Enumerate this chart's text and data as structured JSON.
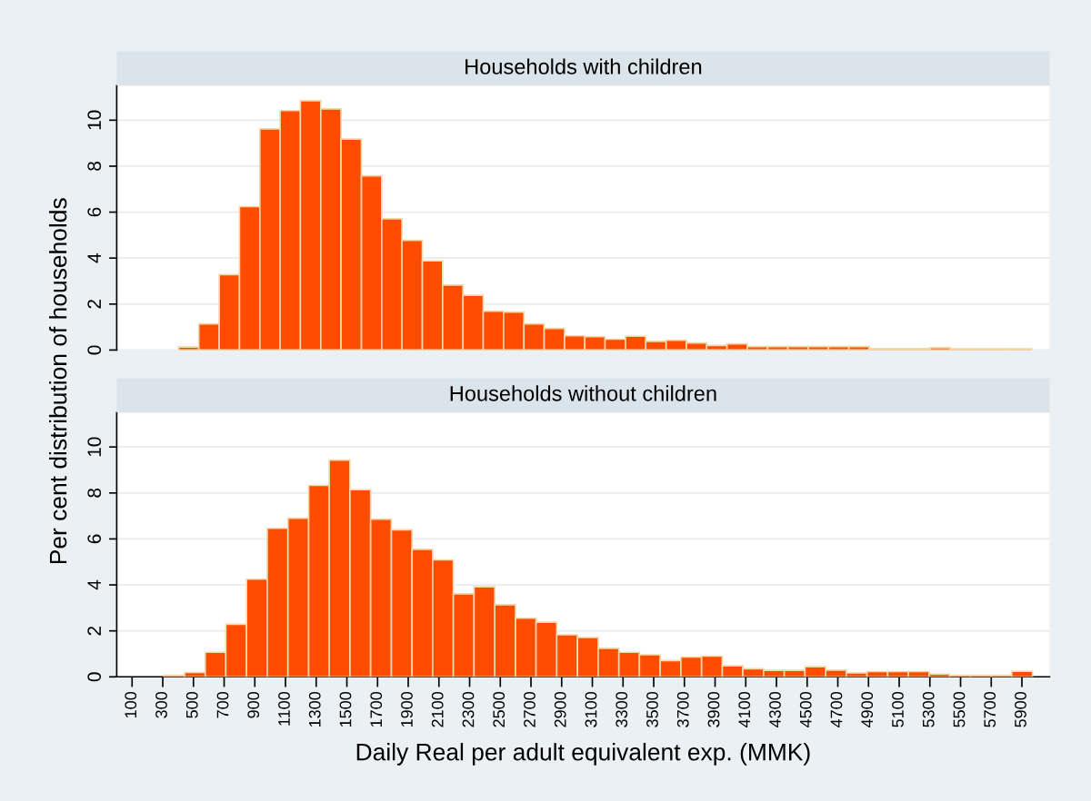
{
  "chart_data": [
    {
      "type": "histogram",
      "title": "Households with children",
      "ylabel": "Per cent distribution of households",
      "color": "#ff4c00",
      "bins": [
        403,
        535,
        668,
        800,
        933,
        1065,
        1197,
        1330,
        1462,
        1595,
        1727,
        1859,
        1992,
        2124,
        2257,
        2389,
        2521,
        2654,
        2786,
        2919,
        3051,
        3183,
        3316,
        3448,
        3581,
        3713,
        3845,
        3978,
        4110,
        4243,
        4375,
        4507,
        4640,
        4772,
        4905,
        5037,
        5169,
        5302,
        5434,
        5567,
        5699,
        5831,
        5964
      ],
      "values": [
        0.13,
        1.14,
        3.28,
        6.24,
        9.62,
        10.42,
        10.85,
        10.49,
        9.18,
        7.58,
        5.71,
        4.77,
        3.88,
        2.83,
        2.38,
        1.69,
        1.65,
        1.14,
        0.94,
        0.62,
        0.58,
        0.47,
        0.6,
        0.38,
        0.43,
        0.31,
        0.2,
        0.27,
        0.15,
        0.15,
        0.15,
        0.15,
        0.15,
        0.15,
        0.06,
        0.06,
        0.06,
        0.1,
        0.05,
        0.05,
        0.05,
        0.05
      ],
      "xlim": [
        0,
        6080
      ],
      "ylim": [
        0,
        11.5
      ],
      "yticks": [
        0,
        2,
        4,
        6,
        8,
        10
      ],
      "xticks": [
        100,
        300,
        500,
        700,
        900,
        1100,
        1300,
        1500,
        1700,
        1900,
        2100,
        2300,
        2500,
        2700,
        2900,
        3100,
        3300,
        3500,
        3700,
        3900,
        4100,
        4300,
        4500,
        4700,
        4900,
        5100,
        5300,
        5500,
        5700,
        5900
      ],
      "tick_labels": "y",
      "grid": "y"
    },
    {
      "type": "histogram",
      "title": "Households without children",
      "xlabel": "Daily Real per adult equivalent exp. (MMK)",
      "color": "#ff4c00",
      "bins": [
        307,
        442,
        577,
        711,
        846,
        981,
        1116,
        1251,
        1385,
        1520,
        1655,
        1790,
        1925,
        2059,
        2194,
        2329,
        2464,
        2599,
        2733,
        2868,
        3003,
        3138,
        3273,
        3407,
        3542,
        3677,
        3812,
        3947,
        4081,
        4216,
        4351,
        4486,
        4621,
        4755,
        4890,
        5025,
        5160,
        5295,
        5429,
        5564,
        5699,
        5834,
        5969
      ],
      "values": [
        0.07,
        0.19,
        1.07,
        2.29,
        4.25,
        6.46,
        6.9,
        8.33,
        9.43,
        8.14,
        6.86,
        6.4,
        5.55,
        5.09,
        3.61,
        3.92,
        3.14,
        2.55,
        2.38,
        1.83,
        1.71,
        1.24,
        1.07,
        0.96,
        0.71,
        0.86,
        0.9,
        0.48,
        0.35,
        0.28,
        0.28,
        0.44,
        0.29,
        0.17,
        0.23,
        0.23,
        0.23,
        0.12,
        0.07,
        0.07,
        0.07,
        0.24
      ],
      "xlim": [
        0,
        6080
      ],
      "ylim": [
        0,
        11.5
      ],
      "yticks": [
        0,
        2,
        4,
        6,
        8,
        10
      ],
      "xticks": [
        100,
        300,
        500,
        700,
        900,
        1100,
        1300,
        1500,
        1700,
        1900,
        2100,
        2300,
        2500,
        2700,
        2900,
        3100,
        3300,
        3500,
        3700,
        3900,
        4100,
        4300,
        4500,
        4700,
        4900,
        5100,
        5300,
        5500,
        5700,
        5900
      ],
      "grid": "y"
    }
  ]
}
